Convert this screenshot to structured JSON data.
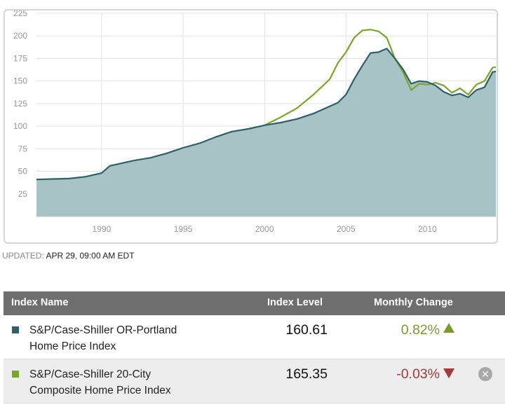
{
  "chart_data": {
    "type": "area",
    "x_domain": [
      1986.0,
      2014.2
    ],
    "ylim": [
      0,
      225
    ],
    "y_ticks": [
      "25",
      "50",
      "75",
      "100",
      "125",
      "150",
      "175",
      "200",
      "225"
    ],
    "y_tick_values": [
      25,
      50,
      75,
      100,
      125,
      150,
      175,
      200,
      225
    ],
    "x_ticks": [
      "1990",
      "1995",
      "2000",
      "2005",
      "2010"
    ],
    "x_tick_values": [
      1990,
      1995,
      2000,
      2005,
      2010
    ],
    "grid": true,
    "series": [
      {
        "color": "#2f5f68",
        "fill": "#a7c3c6",
        "x": [
          1986.0,
          1987.0,
          1988.0,
          1989.0,
          1990.0,
          1990.5,
          1991.0,
          1992.0,
          1993.0,
          1994.0,
          1995.0,
          1996.0,
          1997.0,
          1998.0,
          1999.0,
          2000.0,
          2001.0,
          2002.0,
          2003.0,
          2004.0,
          2004.5,
          2005.0,
          2005.5,
          2006.0,
          2006.5,
          2007.0,
          2007.5,
          2008.0,
          2008.5,
          2009.0,
          2009.5,
          2010.0,
          2010.5,
          2011.0,
          2011.5,
          2012.0,
          2012.5,
          2013.0,
          2013.5,
          2014.0,
          2014.2
        ],
        "y": [
          41,
          41.5,
          42,
          44,
          48,
          56,
          58,
          62,
          65,
          70,
          76,
          81,
          88,
          94,
          97,
          101,
          104,
          108,
          114,
          122,
          126,
          135,
          152,
          167,
          181,
          182,
          186,
          175,
          163,
          147,
          150,
          149,
          145,
          138,
          134,
          136,
          132,
          140,
          143,
          160,
          160.61
        ]
      },
      {
        "color": "#77a82a",
        "x": [
          2000.0,
          2001.0,
          2002.0,
          2003.0,
          2004.0,
          2004.5,
          2005.0,
          2005.5,
          2006.0,
          2006.5,
          2007.0,
          2007.5,
          2008.0,
          2008.5,
          2009.0,
          2009.5,
          2010.0,
          2010.5,
          2011.0,
          2011.5,
          2012.0,
          2012.5,
          2013.0,
          2013.5,
          2014.0,
          2014.2
        ],
        "y": [
          101,
          110,
          120,
          135,
          152,
          170,
          182,
          198,
          206,
          207,
          205,
          198,
          175,
          160,
          140,
          147,
          146,
          148,
          145,
          137,
          142,
          135,
          146,
          150,
          165,
          165.35
        ]
      }
    ]
  },
  "updated": {
    "label": "UPDATED:",
    "value": "APR 29, 09:00 AM EDT"
  },
  "table": {
    "headers": {
      "name": "Index Name",
      "level": "Index Level",
      "change": "Monthly Change"
    },
    "rows": [
      {
        "name_line1": "S&P/Case-Shiller OR-Portland",
        "name_line2": "Home Price Index",
        "level": "160.61",
        "change": "0.82%",
        "direction": "up",
        "color": "#2f5f68"
      },
      {
        "name_line1": "S&P/Case-Shiller 20-City",
        "name_line2": "Composite Home Price Index",
        "level": "165.35",
        "change": "-0.03%",
        "direction": "down",
        "color": "#77a82a"
      }
    ]
  }
}
